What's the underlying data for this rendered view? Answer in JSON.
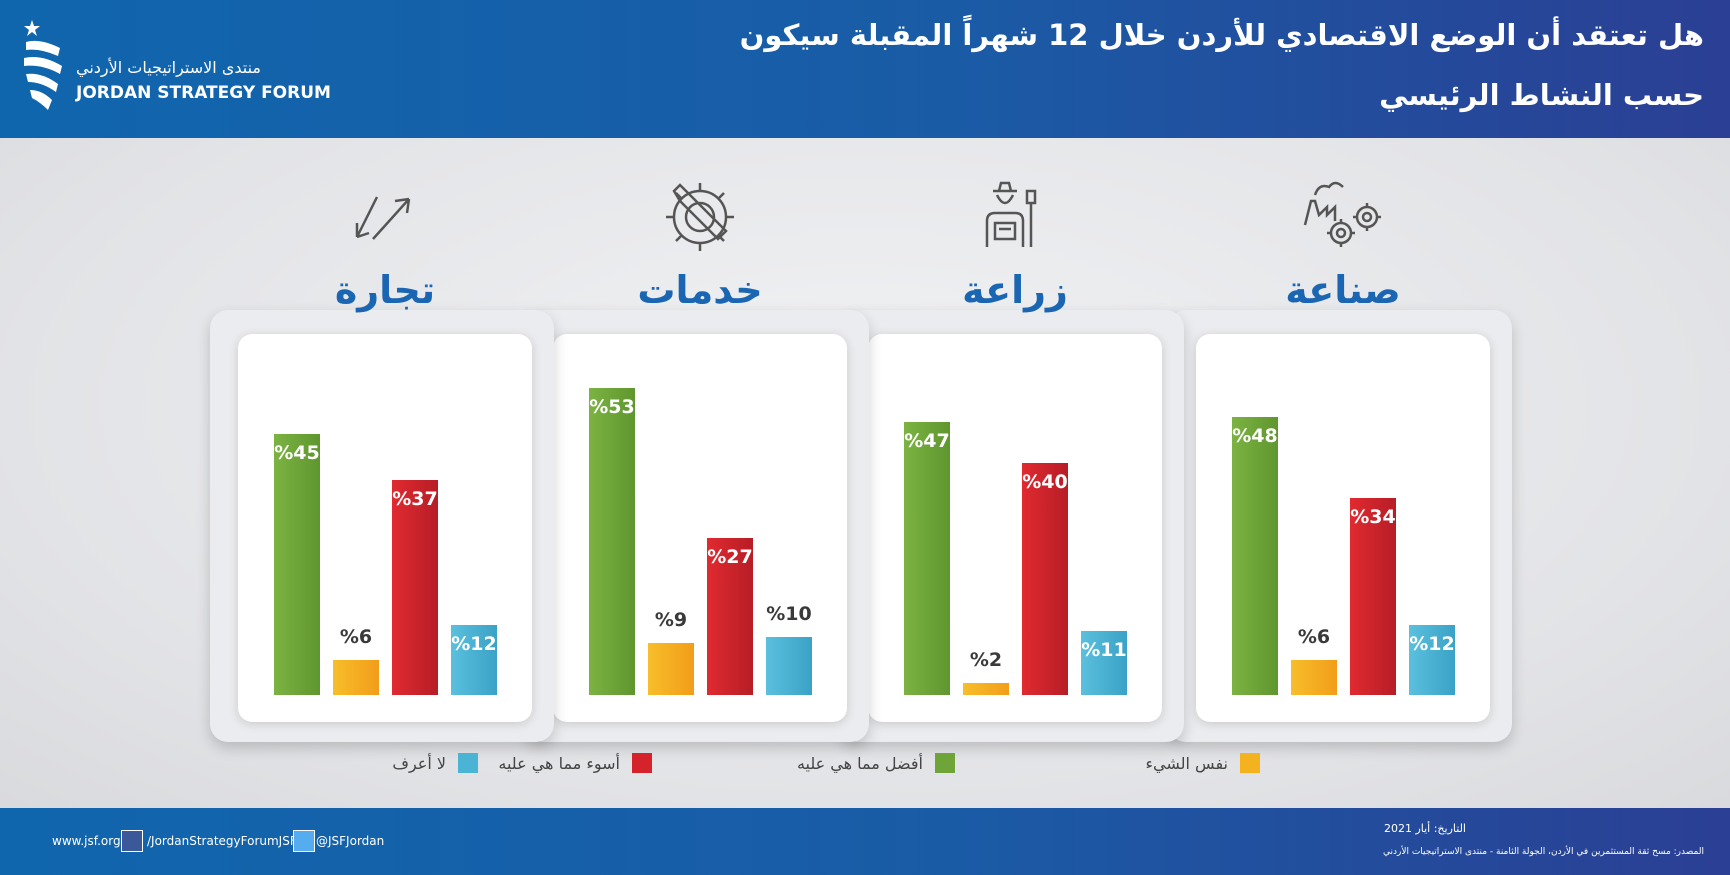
{
  "header": {
    "title_line1": "هل تعتقد أن الوضع الاقتصادي للأردن خلال 12 شهراً المقبلة سيكون",
    "title_line2": "حسب النشاط الرئيسي",
    "logo_ar": "منتدى الاستراتيجيات الأردني",
    "logo_en": "JORDAN STRATEGY FORUM"
  },
  "chart_data": {
    "type": "bar",
    "categories": [
      "صناعة",
      "زراعة",
      "خدمات",
      "تجارة"
    ],
    "category_icons": [
      "factory-gears-icon",
      "farmer-icon",
      "wrench-gear-icon",
      "trade-arrows-icon"
    ],
    "series": [
      {
        "name": "أفضل مما هي عليه",
        "color": "#6fa538",
        "values": [
          48,
          47,
          53,
          45
        ]
      },
      {
        "name": "نفس الشيء",
        "color": "#f5b21f",
        "values": [
          6,
          2,
          9,
          6
        ]
      },
      {
        "name": "أسوء مما هي عليه",
        "color": "#d4232b",
        "values": [
          34,
          40,
          27,
          37
        ]
      },
      {
        "name": "لا أعرف",
        "color": "#4bb3d4",
        "values": [
          12,
          11,
          10,
          12
        ]
      }
    ],
    "value_suffix": "%",
    "ylim": [
      0,
      55
    ],
    "legend_placement": "bottom"
  },
  "legend": [
    {
      "label": "نفس الشيء",
      "color": "#f5b21f"
    },
    {
      "label": "أفضل مما هي عليه",
      "color": "#6fa538"
    },
    {
      "label": "أسوء مما هي عليه",
      "color": "#d4232b"
    },
    {
      "label": "لا أعرف",
      "color": "#4bb3d4"
    }
  ],
  "footer": {
    "website": "www.jsf.org",
    "facebook": "/JordanStrategyForumJSF",
    "twitter": "@JSFJordan",
    "date": "التاريخ: أيار 2021",
    "source": "المصدر: مسح ثقة المستثمرين في الأردن، الجولة الثامنة - منتدى الاستراتيجيات الأردني"
  }
}
